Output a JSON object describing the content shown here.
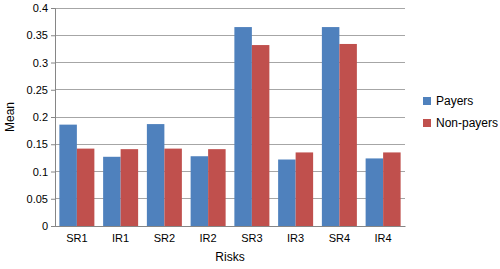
{
  "chart_data": {
    "type": "bar",
    "x_label": "Risks",
    "y_label": "Mean",
    "categories": [
      "SR1",
      "IR1",
      "SR2",
      "IR2",
      "SR3",
      "IR3",
      "SR4",
      "IR4"
    ],
    "series": [
      {
        "name": "Payers",
        "color": "#4f81bd",
        "values": [
          0.186,
          0.127,
          0.187,
          0.128,
          0.365,
          0.122,
          0.365,
          0.124
        ]
      },
      {
        "name": "Non-payers",
        "color": "#c0504d",
        "values": [
          0.142,
          0.141,
          0.142,
          0.141,
          0.332,
          0.135,
          0.334,
          0.135
        ]
      }
    ],
    "ylim": [
      0,
      0.4
    ],
    "yticks": [
      0,
      0.05,
      0.1,
      0.15,
      0.2,
      0.25,
      0.3,
      0.35,
      0.4
    ],
    "grid": true,
    "legend": "right"
  }
}
